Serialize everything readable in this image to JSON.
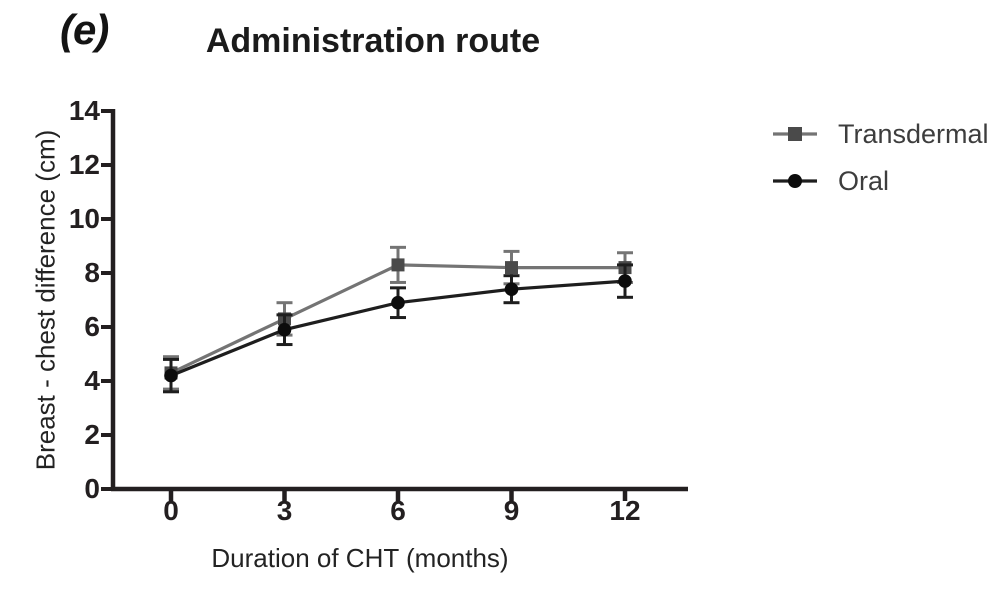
{
  "figure": {
    "panel_label": "(e)",
    "title": "Administration route",
    "y_axis_label": "Breast - chest difference (cm)",
    "x_axis_label": "Duration of CHT (months)"
  },
  "chart_data": {
    "type": "line",
    "title": "Administration route",
    "xlabel": "Duration of CHT (months)",
    "ylabel": "Breast - chest difference (cm)",
    "x": [
      0,
      3,
      6,
      9,
      12
    ],
    "x_tick_labels": [
      "0",
      "3",
      "6",
      "9",
      "12"
    ],
    "y_ticks": [
      0,
      2,
      4,
      6,
      8,
      10,
      12,
      14
    ],
    "y_tick_labels": [
      "0",
      "2",
      "4",
      "6",
      "8",
      "10",
      "12",
      "14"
    ],
    "ylim": [
      0,
      14
    ],
    "xlim": [
      -1.5,
      13.7
    ],
    "grid": false,
    "error_bars": true,
    "legend_position": "right",
    "axis_color": "#231f20",
    "series": [
      {
        "name": "Transdermal",
        "marker": "square",
        "line_color": "#747474",
        "marker_color": "#4a4a4a",
        "values": [
          4.3,
          6.3,
          8.3,
          8.2,
          8.2
        ],
        "errors": [
          0.6,
          0.6,
          0.65,
          0.6,
          0.55
        ]
      },
      {
        "name": "Oral",
        "marker": "circle",
        "line_color": "#1e1e1e",
        "marker_color": "#0c0c0c",
        "values": [
          4.2,
          5.9,
          6.9,
          7.4,
          7.7
        ],
        "errors": [
          0.6,
          0.55,
          0.55,
          0.5,
          0.6
        ]
      }
    ]
  }
}
